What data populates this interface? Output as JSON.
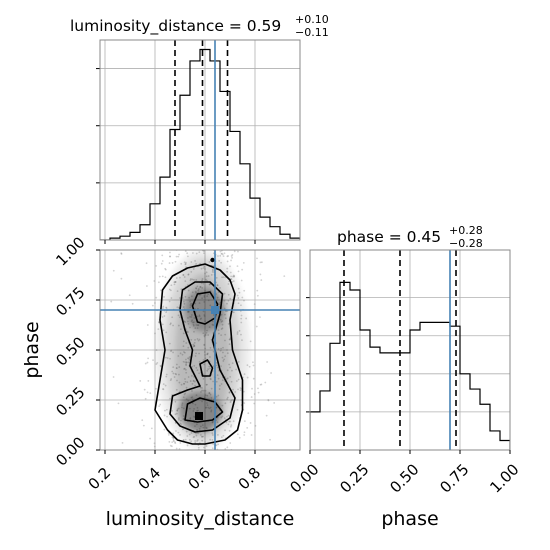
{
  "chart_data": {
    "type": "corner",
    "params": [
      "luminosity_distance",
      "phase"
    ],
    "colors": {
      "truth": "#4682b4",
      "hist": "#000000",
      "grid": "#b0b0b0",
      "points": "#808080"
    },
    "marginals": [
      {
        "param": "luminosity_distance",
        "title": "luminosity_distance = 0.59",
        "title_plus": "+0.10",
        "title_minus": "−0.11",
        "xlim": [
          0.18,
          0.98
        ],
        "bins": [
          0.18,
          0.22,
          0.26,
          0.3,
          0.34,
          0.38,
          0.42,
          0.46,
          0.5,
          0.54,
          0.58,
          0.62,
          0.66,
          0.7,
          0.74,
          0.78,
          0.82,
          0.86,
          0.9,
          0.94,
          0.98
        ],
        "counts": [
          0.0,
          0.01,
          0.02,
          0.04,
          0.08,
          0.19,
          0.33,
          0.58,
          0.76,
          0.94,
          1.0,
          0.94,
          0.78,
          0.57,
          0.4,
          0.22,
          0.12,
          0.07,
          0.03,
          0.01
        ],
        "quantiles": [
          0.48,
          0.59,
          0.69
        ],
        "truth": 0.64,
        "grid_y": [
          0.3,
          0.6,
          0.9
        ]
      },
      {
        "param": "phase",
        "title": "phase = 0.45",
        "title_plus": "+0.28",
        "title_minus": "−0.28",
        "xlim": [
          0.0,
          1.0
        ],
        "bins": [
          0.0,
          0.05,
          0.1,
          0.15,
          0.2,
          0.25,
          0.3,
          0.35,
          0.4,
          0.45,
          0.5,
          0.55,
          0.6,
          0.65,
          0.7,
          0.75,
          0.8,
          0.85,
          0.9,
          0.95,
          1.0
        ],
        "counts": [
          0.2,
          0.31,
          0.56,
          0.88,
          0.84,
          0.63,
          0.54,
          0.51,
          0.51,
          0.51,
          0.63,
          0.67,
          0.67,
          0.67,
          0.65,
          0.4,
          0.32,
          0.24,
          0.1,
          0.05
        ],
        "quantiles": [
          0.17,
          0.45,
          0.73
        ],
        "truth": 0.7,
        "grid_y": [
          0.2,
          0.4,
          0.6,
          0.8
        ]
      }
    ],
    "joint": {
      "x": "luminosity_distance",
      "y": "phase",
      "xlim": [
        0.18,
        0.98
      ],
      "ylim": [
        0.0,
        1.0
      ],
      "xticks": [
        0.2,
        0.4,
        0.6,
        0.8
      ],
      "yticks": [
        0.0,
        0.25,
        0.5,
        0.75,
        1.0
      ],
      "truth": [
        0.64,
        0.7
      ],
      "xlabel": "luminosity_distance",
      "ylabel": "phase",
      "outlier_point": [
        0.63,
        0.95
      ]
    },
    "phase_xticks": [
      0.0,
      0.25,
      0.5,
      0.75,
      1.0
    ],
    "xtick_labels": [
      "0.2",
      "0.4",
      "0.6",
      "0.8"
    ],
    "ytick_labels": [
      "0.00",
      "0.25",
      "0.50",
      "0.75",
      "1.00"
    ],
    "phase_tick_labels": [
      "0.00",
      "0.25",
      "0.50",
      "0.75",
      "1.00"
    ]
  }
}
